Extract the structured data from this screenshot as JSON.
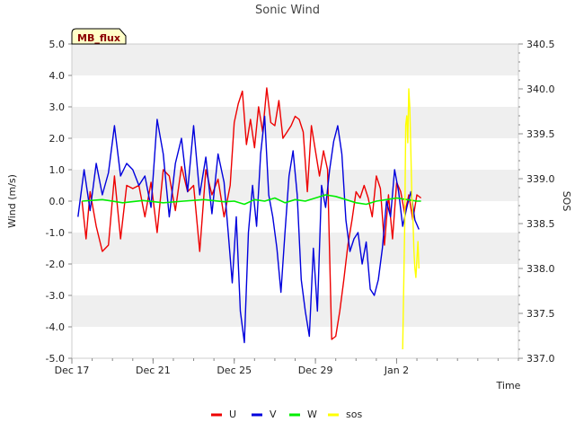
{
  "chart_data": {
    "type": "line",
    "title": "Sonic Wind",
    "badge": "MB_flux",
    "xlabel": "Time",
    "ylabel_left": "Wind (m/s)",
    "ylabel_right": "SOS",
    "x_unit": "days since Dec 17",
    "xlim": [
      0,
      22
    ],
    "ylim_left": [
      -5,
      5
    ],
    "ylim_right": [
      337,
      340.5
    ],
    "yticks_left": [
      "5.0",
      "4.0",
      "3.0",
      "2.0",
      "1.0",
      "0.0",
      "-1.0",
      "-2.0",
      "-3.0",
      "-4.0",
      "-5.0"
    ],
    "yticks_right": [
      "340.5",
      "340.0",
      "339.5",
      "339.0",
      "338.5",
      "338.0",
      "337.5",
      "337.0"
    ],
    "xticks": [
      {
        "label": "Dec 17",
        "x": 0
      },
      {
        "label": "Dec 21",
        "x": 4
      },
      {
        "label": "Dec 25",
        "x": 8
      },
      {
        "label": "Dec 29",
        "x": 12
      },
      {
        "label": "Jan 2",
        "x": 16
      }
    ],
    "legend_position": "bottom-center",
    "series": [
      {
        "name": "U",
        "color": "#ee0000",
        "axis": "left",
        "x": [
          0.5,
          0.7,
          0.9,
          1.2,
          1.5,
          1.8,
          2.1,
          2.4,
          2.7,
          3.0,
          3.3,
          3.6,
          3.9,
          4.2,
          4.5,
          4.8,
          5.1,
          5.4,
          5.7,
          6.0,
          6.3,
          6.6,
          6.9,
          7.2,
          7.5,
          7.8,
          8.0,
          8.2,
          8.4,
          8.6,
          8.8,
          9.0,
          9.2,
          9.4,
          9.6,
          9.8,
          10.0,
          10.2,
          10.4,
          10.6,
          10.8,
          11.0,
          11.2,
          11.4,
          11.6,
          11.8,
          12.0,
          12.2,
          12.4,
          12.6,
          12.8,
          13.0,
          13.2,
          13.4,
          13.6,
          13.8,
          14.0,
          14.2,
          14.4,
          14.6,
          14.8,
          15.0,
          15.2,
          15.4,
          15.6,
          15.8,
          16.0,
          16.2,
          16.4,
          16.6,
          16.8,
          17.0,
          17.2
        ],
        "values": [
          0.0,
          -1.2,
          0.3,
          -0.8,
          -1.6,
          -1.4,
          0.8,
          -1.2,
          0.5,
          0.4,
          0.5,
          -0.5,
          0.6,
          -1.0,
          1.0,
          0.8,
          -0.3,
          1.1,
          0.3,
          0.5,
          -1.6,
          1.0,
          0.2,
          0.7,
          -0.5,
          0.5,
          2.5,
          3.1,
          3.5,
          1.8,
          2.6,
          1.7,
          3.0,
          2.2,
          3.6,
          2.5,
          2.4,
          3.2,
          2.0,
          2.2,
          2.4,
          2.7,
          2.6,
          2.2,
          0.3,
          2.4,
          1.6,
          0.8,
          1.6,
          1.0,
          -4.4,
          -4.3,
          -3.5,
          -2.5,
          -1.4,
          -0.6,
          0.3,
          0.1,
          0.5,
          0.1,
          -0.5,
          0.8,
          0.4,
          -1.4,
          0.2,
          -1.2,
          0.6,
          0.3,
          -0.4,
          0.2,
          -0.6,
          0.2,
          0.1
        ]
      },
      {
        "name": "V",
        "color": "#0000dd",
        "axis": "left",
        "x": [
          0.3,
          0.6,
          0.9,
          1.2,
          1.5,
          1.8,
          2.1,
          2.4,
          2.7,
          3.0,
          3.3,
          3.6,
          3.9,
          4.2,
          4.5,
          4.8,
          5.1,
          5.4,
          5.7,
          6.0,
          6.3,
          6.6,
          6.9,
          7.2,
          7.5,
          7.7,
          7.9,
          8.1,
          8.3,
          8.5,
          8.7,
          8.9,
          9.1,
          9.3,
          9.5,
          9.7,
          9.9,
          10.1,
          10.3,
          10.5,
          10.7,
          10.9,
          11.1,
          11.3,
          11.5,
          11.7,
          11.9,
          12.1,
          12.3,
          12.5,
          12.7,
          12.9,
          13.1,
          13.3,
          13.5,
          13.7,
          13.9,
          14.1,
          14.3,
          14.5,
          14.7,
          14.9,
          15.1,
          15.3,
          15.5,
          15.7,
          15.9,
          16.1,
          16.3,
          16.5,
          16.7,
          16.9,
          17.1
        ],
        "values": [
          -0.5,
          1.0,
          -0.3,
          1.2,
          0.2,
          0.9,
          2.4,
          0.8,
          1.2,
          1.0,
          0.5,
          0.8,
          -0.2,
          2.6,
          1.5,
          -0.5,
          1.2,
          2.0,
          0.3,
          2.4,
          0.2,
          1.4,
          -0.4,
          1.5,
          0.6,
          -1.0,
          -2.6,
          -0.5,
          -3.5,
          -4.5,
          -1.0,
          0.5,
          -0.8,
          1.5,
          2.7,
          0.2,
          -0.5,
          -1.5,
          -2.9,
          -1.0,
          0.8,
          1.6,
          0.2,
          -2.5,
          -3.5,
          -4.3,
          -1.5,
          -3.5,
          0.5,
          -0.2,
          1.0,
          1.9,
          2.4,
          1.5,
          -0.6,
          -1.6,
          -1.2,
          -1.0,
          -2.0,
          -1.3,
          -2.8,
          -3.0,
          -2.5,
          -1.5,
          0.0,
          -0.5,
          1.0,
          0.3,
          -0.8,
          -0.2,
          0.3,
          -0.6,
          -0.9
        ]
      },
      {
        "name": "W",
        "color": "#00ee00",
        "axis": "left",
        "x": [
          0.5,
          1.5,
          2.5,
          3.5,
          4.5,
          5.5,
          6.5,
          7.5,
          8.0,
          8.5,
          9.0,
          9.5,
          10.0,
          10.5,
          11.0,
          11.5,
          12.0,
          12.5,
          13.0,
          13.5,
          14.0,
          14.5,
          15.0,
          15.5,
          16.0,
          16.5,
          17.0,
          17.2
        ],
        "values": [
          0.0,
          0.05,
          -0.05,
          0.02,
          -0.05,
          0.0,
          0.05,
          -0.02,
          0.0,
          -0.1,
          0.05,
          0.0,
          0.1,
          -0.05,
          0.05,
          0.0,
          0.1,
          0.2,
          0.15,
          0.05,
          -0.05,
          -0.1,
          0.0,
          0.05,
          0.1,
          0.05,
          0.0,
          0.0
        ]
      },
      {
        "name": "sos",
        "color": "#ffff00",
        "axis": "right",
        "x": [
          16.3,
          16.4,
          16.45,
          16.5,
          16.55,
          16.6,
          16.65,
          16.7,
          16.75,
          16.8,
          16.85,
          16.9,
          16.95,
          17.0,
          17.05,
          17.1
        ],
        "values": [
          337.1,
          338.5,
          339.6,
          339.7,
          339.4,
          340.0,
          339.8,
          339.3,
          338.8,
          338.6,
          338.2,
          338.0,
          337.9,
          338.1,
          338.3,
          338.0
        ]
      }
    ]
  }
}
